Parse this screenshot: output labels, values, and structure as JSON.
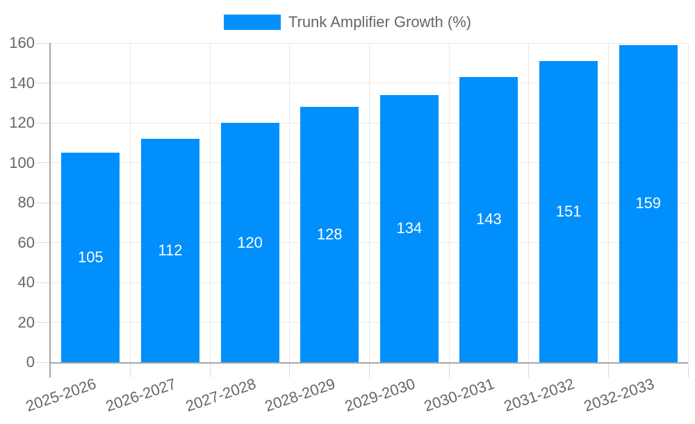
{
  "chart_data": {
    "type": "bar",
    "title": "Trunk Amplifier Growth (%)",
    "legend": {
      "position": "top",
      "label": "Trunk Amplifier Growth (%)"
    },
    "categories": [
      "2025-2026",
      "2026-2027",
      "2027-2028",
      "2028-2029",
      "2029-2030",
      "2030-2031",
      "2031-2032",
      "2032-2033"
    ],
    "series": [
      {
        "name": "Trunk Amplifier Growth (%)",
        "values": [
          105,
          112,
          120,
          128,
          134,
          143,
          151,
          159
        ]
      }
    ],
    "values": [
      105,
      112,
      120,
      128,
      134,
      143,
      151,
      159
    ],
    "xlabel": "",
    "ylabel": "",
    "ylim": [
      0,
      160
    ],
    "ytick_values": [
      0,
      20,
      40,
      60,
      80,
      100,
      120,
      140,
      160
    ],
    "grid": true,
    "x_label_rotation_deg": -19,
    "colors": {
      "bar": "#008FFB",
      "datalabel": "#FFFFFF",
      "axis_label": "#666666",
      "gridline": "#E8E8E8",
      "axis_line": "#A6A6A6",
      "tick": "#DBDBDB",
      "background": "#FFFFFF"
    }
  }
}
